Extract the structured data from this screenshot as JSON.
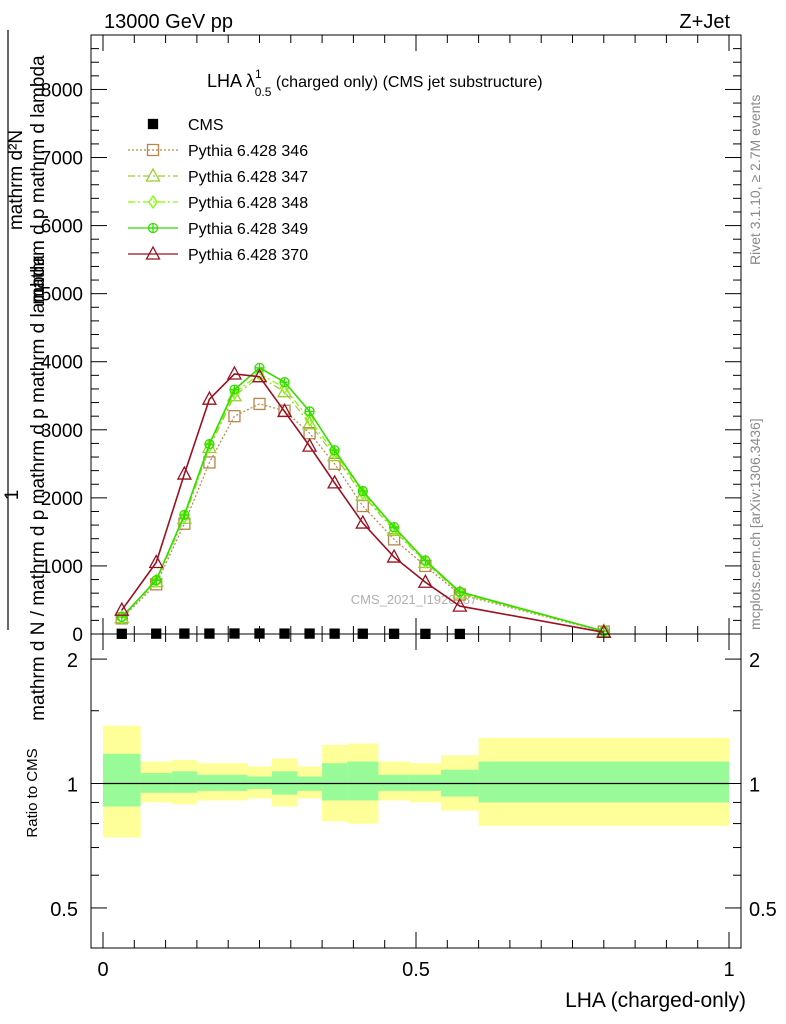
{
  "header": {
    "left": "13000 GeV pp",
    "right": "Z+Jet"
  },
  "side_text": {
    "rivet": "Rivet 3.1.10, ≥ 2.7M events",
    "mcplots": "mcplots.cern.ch [arXiv:1306.3436]"
  },
  "watermark": "CMS_2021_I1920187",
  "chart_data": [
    {
      "type": "line",
      "panel": "main",
      "title": "LHA λ¹₀.₅ (charged only) (CMS jet substructure)",
      "title_parts": {
        "pre": "LHA λ",
        "sup": "1",
        "sub": "0.5",
        "post": " (charged only) (CMS jet substructure)"
      },
      "ylabel_numerator": "1",
      "ylabel_denominator": "mathrm d N / mathrm d p mathrm d p mathrm d lambda",
      "ylabel_top": "mathrm d²N",
      "ylabel_bottom": "mathrm d p mathrm d lambda",
      "ylabel_full": "1 / mathrm d N / mathrm d p mathrm d p mathrm d lambda   mathrm d²N / mathrm d p mathrm d lambda",
      "xlim": [
        0,
        1
      ],
      "ylim": [
        0,
        8800
      ],
      "yticks": [
        0,
        1000,
        2000,
        3000,
        4000,
        5000,
        6000,
        7000,
        8000
      ],
      "ytick_labels": [
        "0",
        "1000",
        "2000",
        "3000",
        "4000",
        "5000",
        "6000",
        "7000",
        "8000"
      ],
      "legend_position": "top-left",
      "x": [
        0.03,
        0.085,
        0.13,
        0.17,
        0.21,
        0.25,
        0.29,
        0.33,
        0.37,
        0.415,
        0.465,
        0.515,
        0.57,
        0.8
      ],
      "series": [
        {
          "name": "CMS",
          "color": "#000000",
          "marker": "square-filled",
          "line": "none",
          "x": [
            0.03,
            0.085,
            0.13,
            0.17,
            0.21,
            0.25,
            0.29,
            0.33,
            0.37,
            0.415,
            0.465,
            0.515,
            0.57
          ],
          "values": [
            3,
            5,
            6,
            6,
            7,
            7,
            6,
            6,
            5,
            4,
            3,
            2,
            1
          ]
        },
        {
          "name": "Pythia 6.428 346",
          "color": "#b8864b",
          "marker": "square-open",
          "line": "dotted",
          "values": [
            230,
            730,
            1620,
            2520,
            3200,
            3380,
            3280,
            2950,
            2500,
            1880,
            1390,
            1000,
            580,
            35
          ]
        },
        {
          "name": "Pythia 6.428 347",
          "color": "#9acd32",
          "marker": "triangle-open",
          "line": "dashdot",
          "values": [
            240,
            770,
            1700,
            2740,
            3500,
            3780,
            3560,
            3090,
            2620,
            2040,
            1520,
            1050,
            600,
            38
          ]
        },
        {
          "name": "Pythia 6.428 348",
          "color": "#7fff00",
          "marker": "diamond-open",
          "line": "dashdot",
          "values": [
            245,
            780,
            1720,
            2770,
            3540,
            3820,
            3620,
            3150,
            2660,
            2070,
            1540,
            1060,
            605,
            40
          ]
        },
        {
          "name": "Pythia 6.428 349",
          "color": "#33dd00",
          "marker": "circle-cross",
          "line": "solid",
          "values": [
            250,
            790,
            1750,
            2790,
            3590,
            3910,
            3700,
            3270,
            2700,
            2100,
            1570,
            1080,
            620,
            42
          ]
        },
        {
          "name": "Pythia 6.428 370",
          "color": "#9b1022",
          "marker": "triangle-open",
          "line": "solid",
          "values": [
            350,
            1050,
            2350,
            3450,
            3820,
            3780,
            3270,
            2760,
            2220,
            1630,
            1130,
            760,
            410,
            25
          ]
        }
      ]
    },
    {
      "type": "area",
      "panel": "ratio",
      "ylabel": "Ratio to CMS",
      "xlabel": "LHA (charged-only)",
      "xlim": [
        0,
        1
      ],
      "ylim": [
        0.4,
        2.3
      ],
      "yscale": "log",
      "yticks": [
        0.5,
        1,
        2
      ],
      "ytick_labels": [
        "0.5",
        "1",
        "2"
      ],
      "xticks": [
        0,
        0.5,
        1
      ],
      "xtick_labels": [
        "0",
        "0.5",
        "1"
      ],
      "reference_line": 1,
      "bins": [
        {
          "lo": 0.0,
          "hi": 0.06,
          "stat_lo": 0.88,
          "stat_hi": 1.18,
          "tot_lo": 0.74,
          "tot_hi": 1.38
        },
        {
          "lo": 0.06,
          "hi": 0.11,
          "stat_lo": 0.95,
          "stat_hi": 1.06,
          "tot_lo": 0.9,
          "tot_hi": 1.13
        },
        {
          "lo": 0.11,
          "hi": 0.15,
          "stat_lo": 0.95,
          "stat_hi": 1.07,
          "tot_lo": 0.89,
          "tot_hi": 1.14
        },
        {
          "lo": 0.15,
          "hi": 0.19,
          "stat_lo": 0.96,
          "stat_hi": 1.05,
          "tot_lo": 0.91,
          "tot_hi": 1.12
        },
        {
          "lo": 0.19,
          "hi": 0.23,
          "stat_lo": 0.96,
          "stat_hi": 1.05,
          "tot_lo": 0.91,
          "tot_hi": 1.12
        },
        {
          "lo": 0.23,
          "hi": 0.27,
          "stat_lo": 0.97,
          "stat_hi": 1.04,
          "tot_lo": 0.92,
          "tot_hi": 1.1
        },
        {
          "lo": 0.27,
          "hi": 0.31,
          "stat_lo": 0.94,
          "stat_hi": 1.07,
          "tot_lo": 0.88,
          "tot_hi": 1.15
        },
        {
          "lo": 0.31,
          "hi": 0.35,
          "stat_lo": 0.96,
          "stat_hi": 1.04,
          "tot_lo": 0.92,
          "tot_hi": 1.1
        },
        {
          "lo": 0.35,
          "hi": 0.39,
          "stat_lo": 0.91,
          "stat_hi": 1.12,
          "tot_lo": 0.81,
          "tot_hi": 1.24
        },
        {
          "lo": 0.39,
          "hi": 0.44,
          "stat_lo": 0.91,
          "stat_hi": 1.13,
          "tot_lo": 0.8,
          "tot_hi": 1.25
        },
        {
          "lo": 0.44,
          "hi": 0.49,
          "stat_lo": 0.96,
          "stat_hi": 1.05,
          "tot_lo": 0.91,
          "tot_hi": 1.13
        },
        {
          "lo": 0.49,
          "hi": 0.54,
          "stat_lo": 0.96,
          "stat_hi": 1.05,
          "tot_lo": 0.9,
          "tot_hi": 1.12
        },
        {
          "lo": 0.54,
          "hi": 0.6,
          "stat_lo": 0.93,
          "stat_hi": 1.08,
          "tot_lo": 0.86,
          "tot_hi": 1.17
        },
        {
          "lo": 0.6,
          "hi": 1.0,
          "stat_lo": 0.9,
          "stat_hi": 1.13,
          "tot_lo": 0.79,
          "tot_hi": 1.29
        }
      ],
      "stat_color": "#98fb98",
      "total_color": "#ffff99"
    }
  ]
}
